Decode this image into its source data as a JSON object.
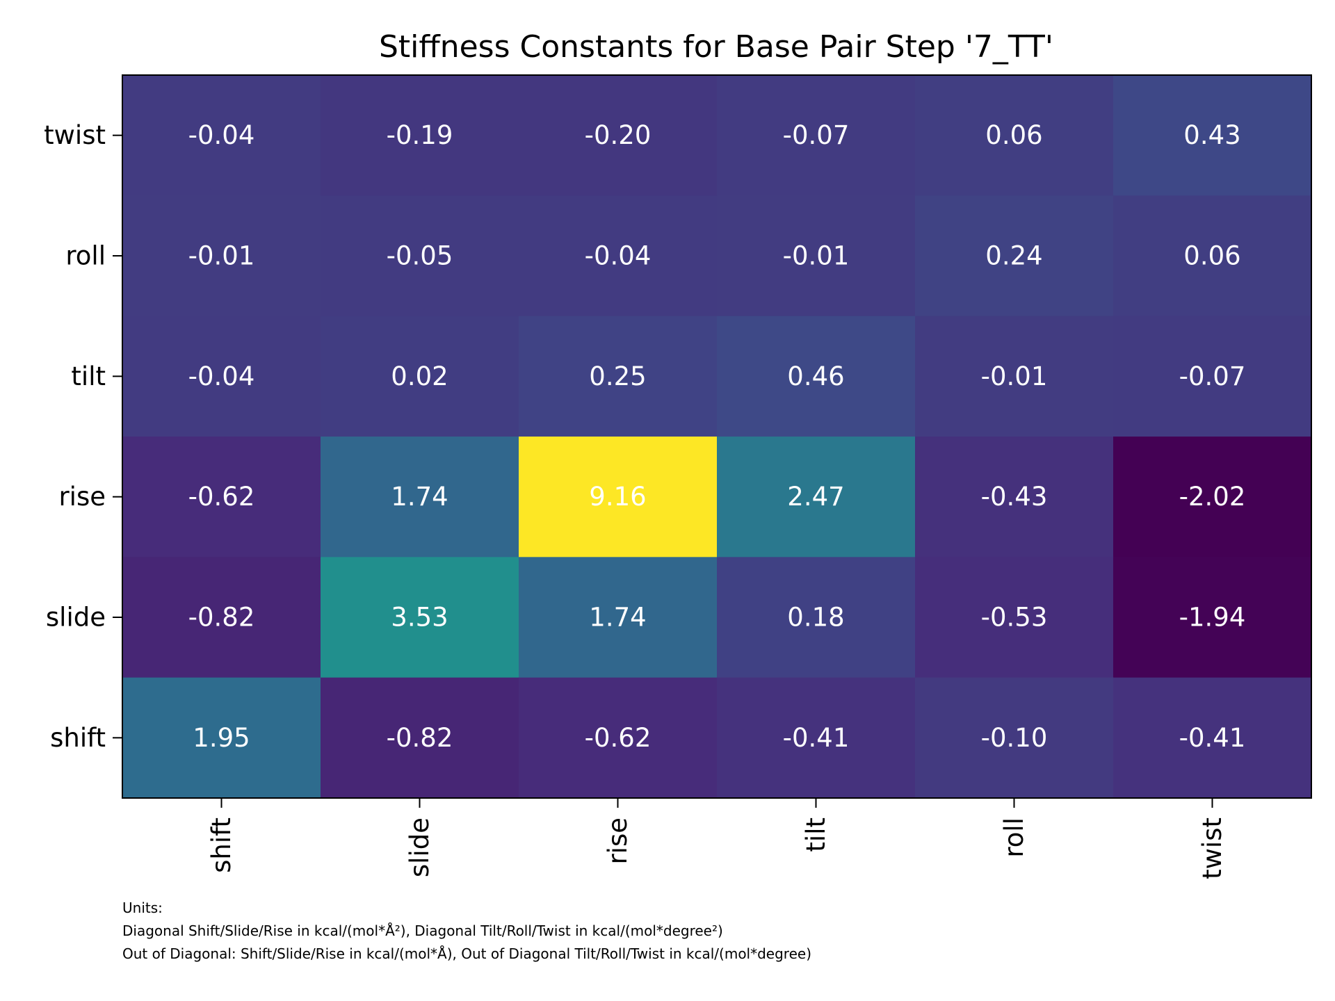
{
  "chart_data": {
    "type": "heatmap",
    "title": "Stiffness Constants for Base Pair Step '7_TT'",
    "xlabel": "",
    "ylabel": "",
    "x_categories": [
      "shift",
      "slide",
      "rise",
      "tilt",
      "roll",
      "twist"
    ],
    "y_categories": [
      "twist",
      "roll",
      "tilt",
      "rise",
      "slide",
      "shift"
    ],
    "values": [
      [
        -0.04,
        -0.19,
        -0.2,
        -0.07,
        0.06,
        0.43
      ],
      [
        -0.01,
        -0.05,
        -0.04,
        -0.01,
        0.24,
        0.06
      ],
      [
        -0.04,
        0.02,
        0.25,
        0.46,
        -0.01,
        -0.07
      ],
      [
        -0.62,
        1.74,
        9.16,
        2.47,
        -0.43,
        -2.02
      ],
      [
        -0.82,
        3.53,
        1.74,
        0.18,
        -0.53,
        -1.94
      ],
      [
        1.95,
        -0.82,
        -0.62,
        -0.41,
        -0.1,
        -0.41
      ]
    ],
    "value_format": 2,
    "colormap": "viridis",
    "vmin": -2.02,
    "vmax": 9.16,
    "colorbar": false,
    "grid": false
  },
  "notes": {
    "line1": "Units:",
    "line2": "Diagonal Shift/Slide/Rise in kcal/(mol*Å²), Diagonal Tilt/Roll/Twist in kcal/(mol*degree²)",
    "line3": "Out of Diagonal: Shift/Slide/Rise in kcal/(mol*Å), Out of Diagonal Tilt/Roll/Twist in kcal/(mol*degree)"
  }
}
